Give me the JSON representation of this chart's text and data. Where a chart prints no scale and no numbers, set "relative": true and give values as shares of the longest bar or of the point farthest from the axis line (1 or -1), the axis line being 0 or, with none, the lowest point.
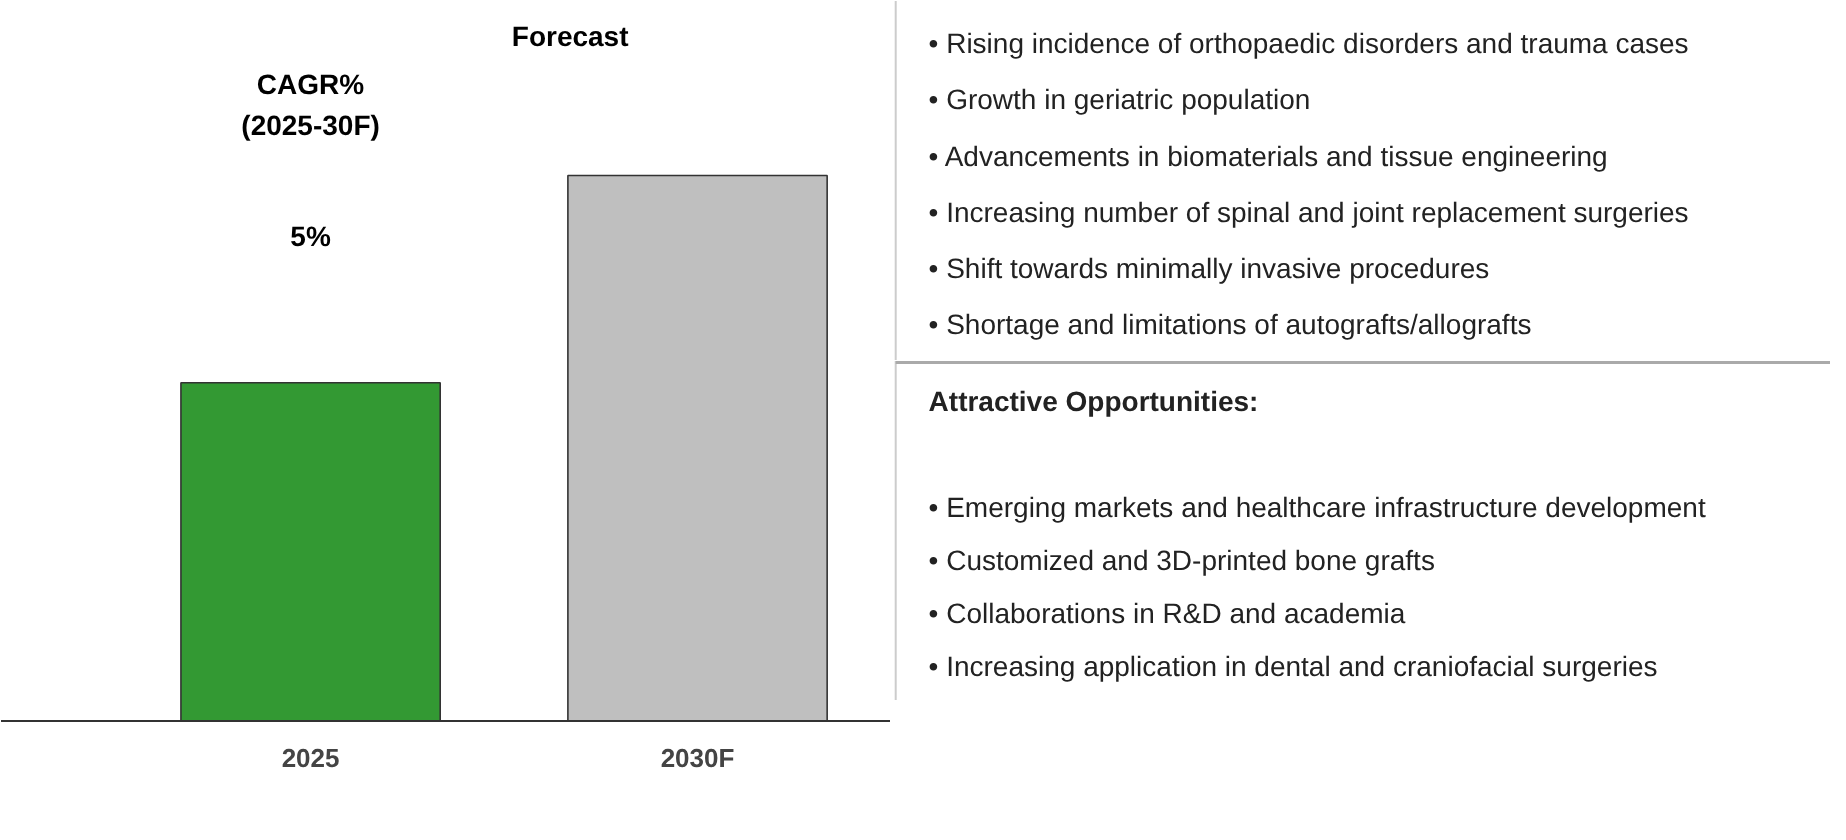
{
  "chart_data": [
    {
      "type": "bar",
      "categories": [
        "2025",
        "2030F"
      ],
      "values": [
        0.62,
        1
      ],
      "colors": [
        "#339933",
        "#bfbfbf"
      ],
      "relative": true,
      "annotations": [
        "CAGR%\n(2025-30F)",
        "5%",
        "Forecast"
      ]
    },
    {
      "type": "other",
      "annotations": [
        "•   Rising incidence of orthopaedic disorders and trauma cases",
        "•   Growth in geriatric population",
        "•   Advancements in biomaterials and tissue engineering",
        "•   Increasing number of spinal and joint replacement surgeries",
        "•   Shift towards minimally invasive procedures",
        "•   Shortage and limitations of autografts/allografts"
      ]
    },
    {
      "type": "other",
      "title": "Attractive Opportunities:",
      "annotations": [
        "•   Emerging markets and healthcare infrastructure development",
        "•   Customized and 3D-printed bone grafts",
        "•   Collaborations in R&D and academia",
        "•   Increasing application in dental and craniofacial surgeries"
      ]
    }
  ]
}
